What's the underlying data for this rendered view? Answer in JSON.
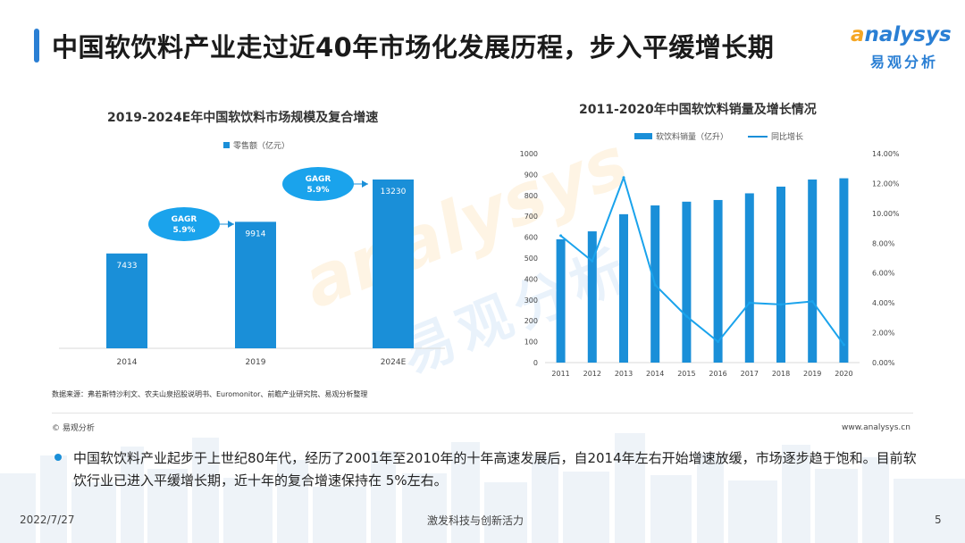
{
  "header": {
    "title": "中国软饮料产业走过近40年市场化发展历程，步入平缓增长期",
    "logo_en_a": "a",
    "logo_en_rest": "nalysys",
    "logo_cn": "易观分析"
  },
  "colors": {
    "accent": "#1a8fd8",
    "title_bar": "#2a7fd4",
    "logo_orange": "#f5a623"
  },
  "chart_data": [
    {
      "type": "bar",
      "title": "2019-2024E年中国软饮料市场规模及复合增速",
      "legend": "零售额（亿元）",
      "categories": [
        "2014",
        "2019",
        "2024E"
      ],
      "values": [
        7433,
        9914,
        13230
      ],
      "ylim": [
        0,
        14000
      ],
      "annotations": [
        {
          "label": "GAGR",
          "value": "5.9%",
          "between": [
            "2014",
            "2019"
          ]
        },
        {
          "label": "GAGR",
          "value": "5.9%",
          "between": [
            "2019",
            "2024E"
          ]
        }
      ]
    },
    {
      "type": "bar+line",
      "title": "2011-2020年中国软饮料销量及增长情况",
      "categories": [
        "2011",
        "2012",
        "2013",
        "2014",
        "2015",
        "2016",
        "2017",
        "2018",
        "2019",
        "2020"
      ],
      "series": [
        {
          "name": "软饮料销量（亿升）",
          "type": "bar",
          "axis": "left",
          "values": [
            590,
            628,
            710,
            752,
            770,
            778,
            810,
            842,
            876,
            882
          ]
        },
        {
          "name": "同比增长",
          "type": "line",
          "axis": "right",
          "values": [
            8.5,
            6.8,
            12.4,
            5.2,
            3.1,
            1.4,
            4.0,
            3.9,
            4.1,
            1.2
          ]
        }
      ],
      "y_left": {
        "range": [
          0,
          1000
        ],
        "ticks": [
          "0",
          "100",
          "200",
          "300",
          "400",
          "500",
          "600",
          "700",
          "800",
          "900",
          "1000"
        ]
      },
      "y_right": {
        "range": [
          0,
          14
        ],
        "ticks": [
          "0.00%",
          "2.00%",
          "4.00%",
          "6.00%",
          "8.00%",
          "10.00%",
          "12.00%",
          "14.00%"
        ]
      }
    }
  ],
  "source": "数据来源：弗若斯特沙利文、农夫山泉招股说明书、Euromonitor、前瞻产业研究院、易观分析整理",
  "copyright": "© 易观分析",
  "url": "www.analysys.cn",
  "paragraph": "中国软饮料产业起步于上世纪80年代，经历了2001年至2010年的十年高速发展后，自2014年左右开始增速放缓，市场逐步趋于饱和。目前软饮行业已进入平缓增长期，近十年的复合增速保持在 5%左右。",
  "footer": {
    "date": "2022/7/27",
    "center": "激发科技与创新活力",
    "page": "5"
  },
  "watermark": {
    "en": "analysys",
    "cn": "易观分析"
  }
}
